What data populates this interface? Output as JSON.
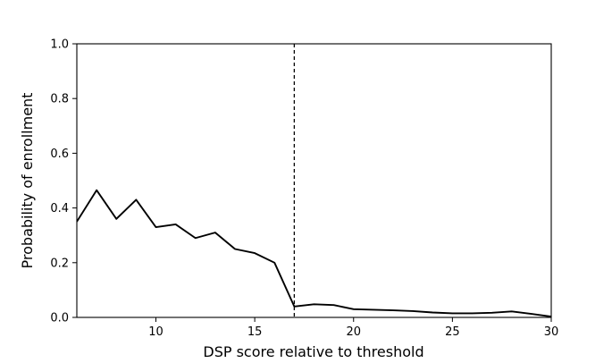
{
  "chart_data": {
    "type": "line",
    "title": "",
    "xlabel": "DSP score relative to threshold",
    "ylabel": "Probability of enrollment",
    "xlim": [
      6,
      30
    ],
    "ylim": [
      0,
      1.0
    ],
    "x_ticks": [
      10,
      15,
      20,
      25,
      30
    ],
    "x_tick_labels": [
      "10",
      "15",
      "20",
      "25",
      "30"
    ],
    "y_ticks": [
      0,
      0.2,
      0.4,
      0.6,
      0.8,
      1.0
    ],
    "y_tick_labels": [
      "0.0",
      "0.2",
      "0.4",
      "0.6",
      "0.8",
      "1.0"
    ],
    "grid": false,
    "legend": "none",
    "threshold_line": {
      "x": 17,
      "style": "dashed",
      "color": "#000000"
    },
    "series": [
      {
        "color": "#000000",
        "x": [
          6,
          7,
          8,
          9,
          10,
          11,
          12,
          13,
          14,
          15,
          16,
          17,
          18,
          19,
          20,
          21,
          22,
          23,
          24,
          25,
          26,
          27,
          28,
          29,
          30
        ],
        "y": [
          0.35,
          0.465,
          0.36,
          0.43,
          0.33,
          0.34,
          0.29,
          0.31,
          0.25,
          0.235,
          0.2,
          0.04,
          0.048,
          0.045,
          0.03,
          0.028,
          0.026,
          0.023,
          0.018,
          0.015,
          0.015,
          0.017,
          0.022,
          0.013,
          0.003
        ]
      }
    ]
  }
}
